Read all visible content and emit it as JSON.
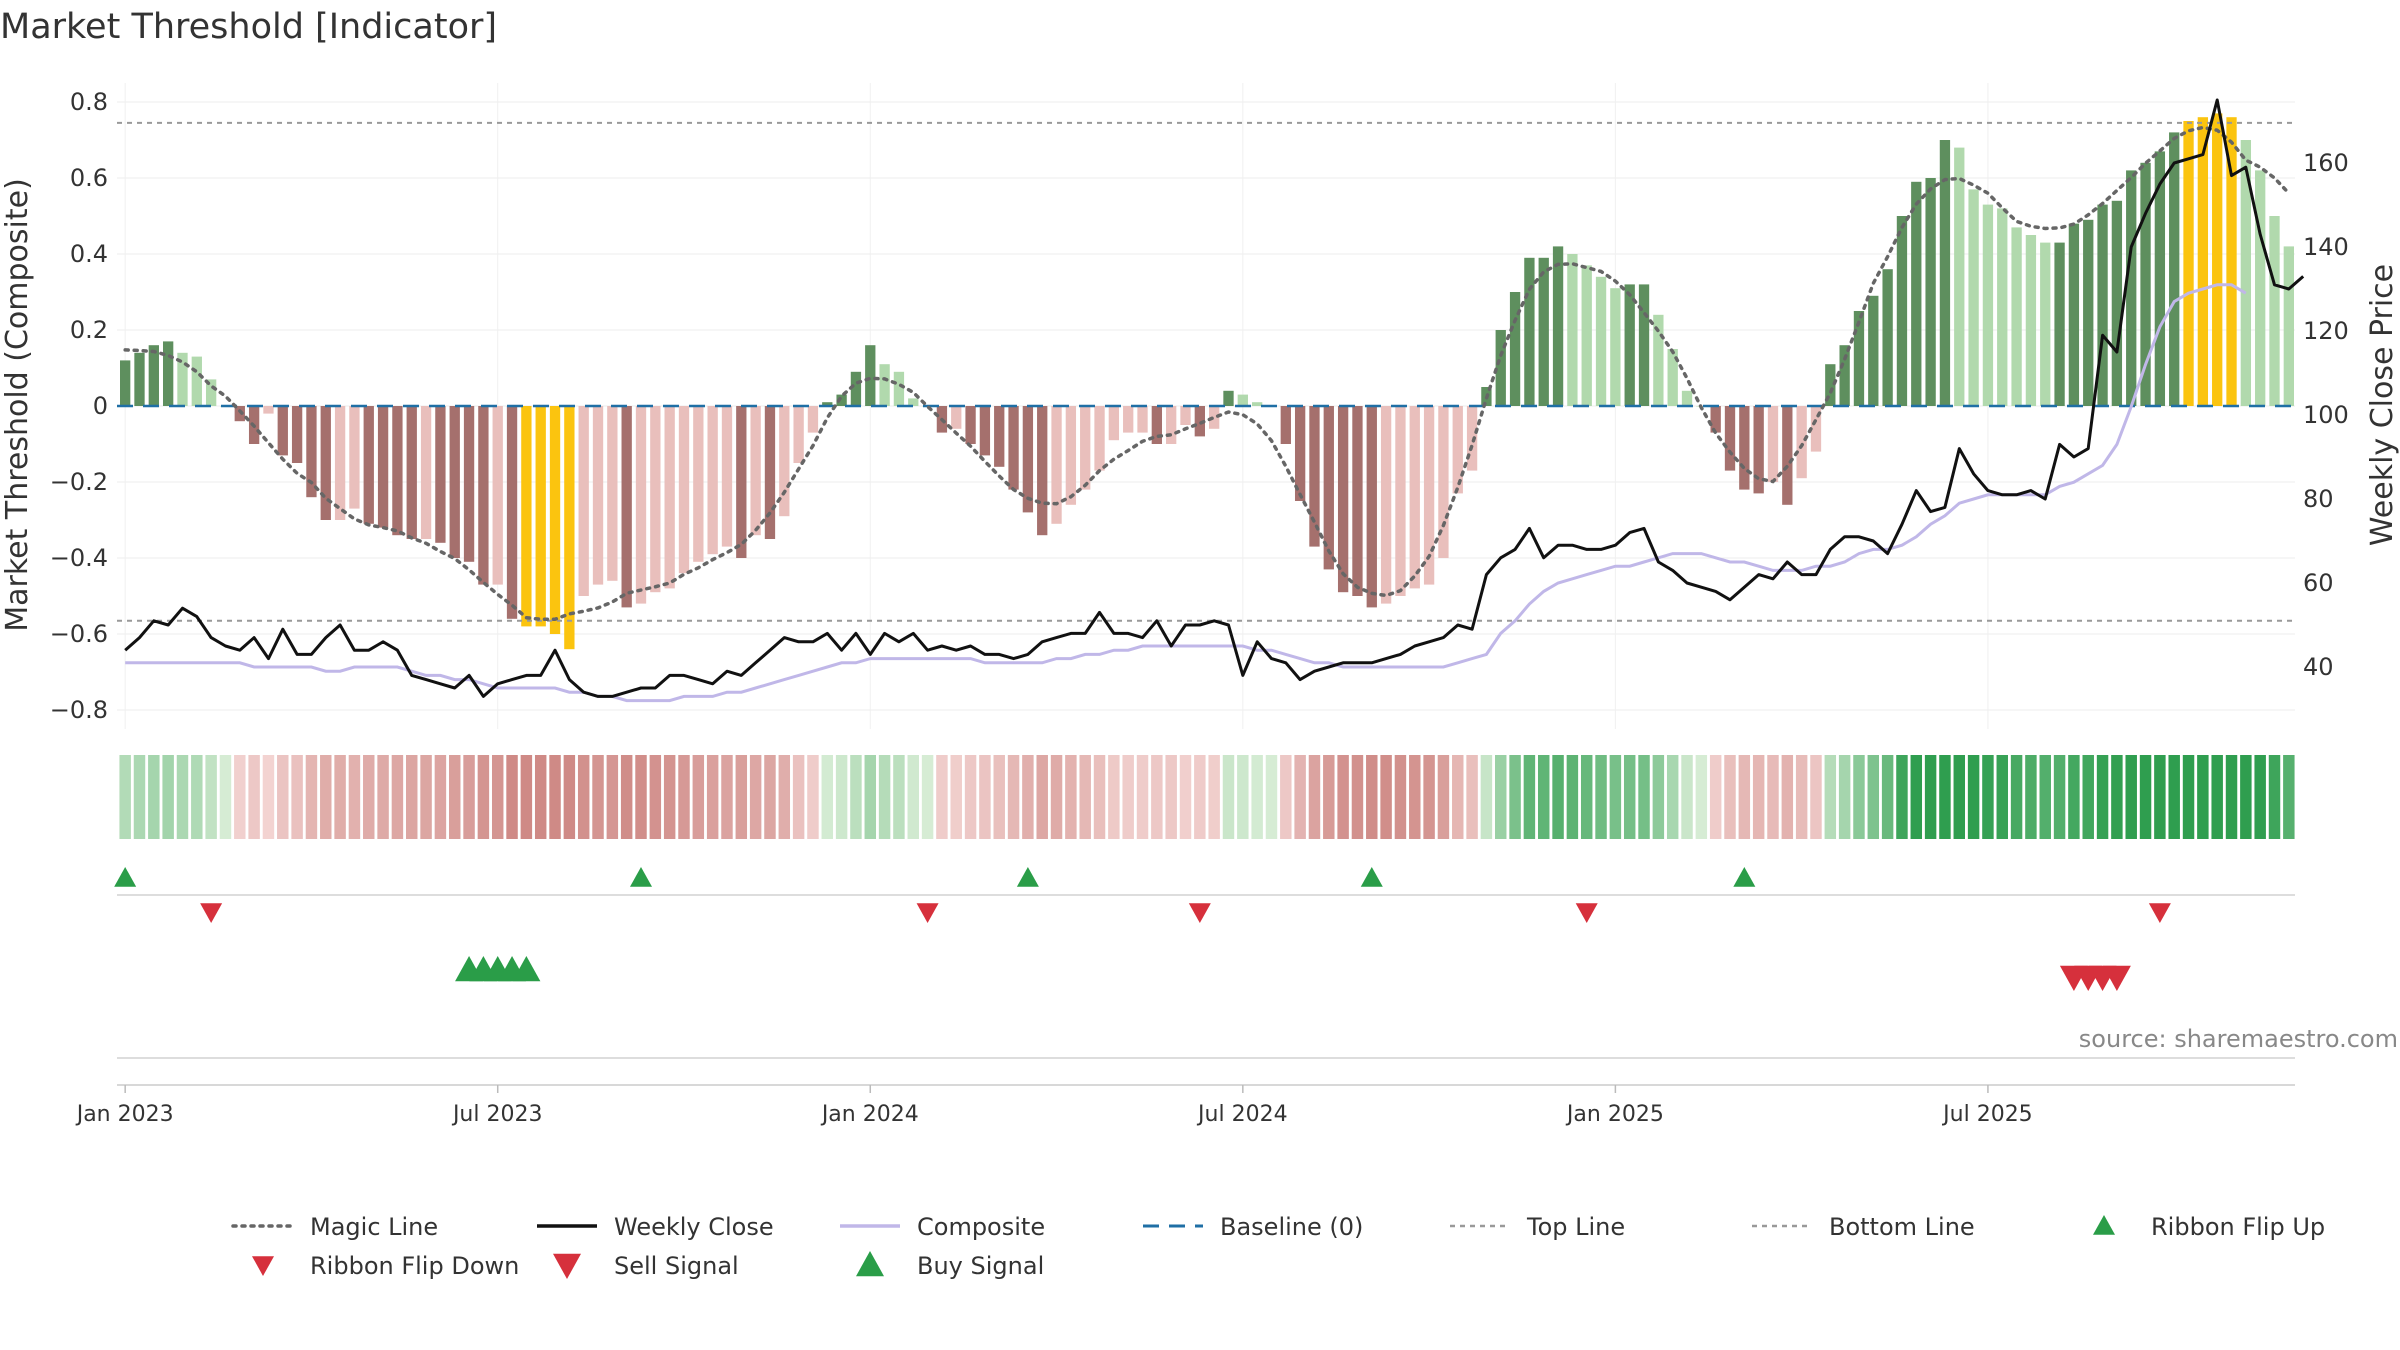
{
  "chart_data": {
    "type": "bar",
    "title": "Market Threshold [Indicator]",
    "ylabel_left": "Market Threshold (Composite)",
    "ylabel_right": "Weekly Close Price",
    "source": "source: sharemaestro.com",
    "ylim_left": [
      -0.85,
      0.85
    ],
    "ylim_right": [
      26,
      178
    ],
    "yticks_left": [
      {
        "v": 0.8,
        "label": "0.8"
      },
      {
        "v": 0.6,
        "label": "0.6"
      },
      {
        "v": 0.4,
        "label": "0.4"
      },
      {
        "v": 0.2,
        "label": "0.2"
      },
      {
        "v": 0,
        "label": "0"
      },
      {
        "v": -0.2,
        "label": "−0.2"
      },
      {
        "v": -0.4,
        "label": "−0.4"
      },
      {
        "v": -0.6,
        "label": "−0.6"
      },
      {
        "v": -0.8,
        "label": "−0.8"
      }
    ],
    "yticks_right": [
      {
        "v": 160,
        "label": "160"
      },
      {
        "v": 140,
        "label": "140"
      },
      {
        "v": 120,
        "label": "120"
      },
      {
        "v": 100,
        "label": "100"
      },
      {
        "v": 80,
        "label": "80"
      },
      {
        "v": 60,
        "label": "60"
      },
      {
        "v": 40,
        "label": "40"
      }
    ],
    "xticks": [
      {
        "week": 0,
        "label": "Jan 2023"
      },
      {
        "week": 26,
        "label": "Jul 2023"
      },
      {
        "week": 52,
        "label": "Jan 2024"
      },
      {
        "week": 78,
        "label": "Jul 2024"
      },
      {
        "week": 104,
        "label": "Jan 2025"
      },
      {
        "week": 130,
        "label": "Jul 2025"
      }
    ],
    "top_line": 0.745,
    "bottom_line": -0.565,
    "baseline": 0,
    "composite": [
      0.12,
      0.14,
      0.16,
      0.17,
      0.14,
      0.13,
      0.07,
      0,
      -0.04,
      -0.1,
      -0.02,
      -0.13,
      -0.15,
      -0.24,
      -0.3,
      -0.3,
      -0.27,
      -0.31,
      -0.32,
      -0.34,
      -0.35,
      -0.35,
      -0.36,
      -0.4,
      -0.41,
      -0.47,
      -0.47,
      -0.56,
      -0.58,
      -0.58,
      -0.6,
      -0.64,
      -0.5,
      -0.47,
      -0.46,
      -0.53,
      -0.52,
      -0.49,
      -0.48,
      -0.44,
      -0.41,
      -0.39,
      -0.37,
      -0.4,
      -0.34,
      -0.35,
      -0.29,
      -0.15,
      -0.07,
      0.01,
      0.03,
      0.09,
      0.16,
      0.11,
      0.09,
      0.02,
      0,
      -0.07,
      -0.06,
      -0.1,
      -0.13,
      -0.16,
      -0.22,
      -0.28,
      -0.34,
      -0.31,
      -0.26,
      -0.22,
      -0.17,
      -0.09,
      -0.07,
      -0.07,
      -0.1,
      -0.1,
      -0.05,
      -0.08,
      -0.06,
      0.04,
      0.03,
      0.01,
      0,
      -0.1,
      -0.25,
      -0.37,
      -0.43,
      -0.49,
      -0.5,
      -0.53,
      -0.52,
      -0.5,
      -0.48,
      -0.47,
      -0.4,
      -0.23,
      -0.17,
      0.05,
      0.2,
      0.3,
      0.39,
      0.39,
      0.42,
      0.4,
      0.37,
      0.34,
      0.31,
      0.32,
      0.32,
      0.24,
      0.15,
      0.04,
      0,
      -0.07,
      -0.17,
      -0.22,
      -0.23,
      -0.2,
      -0.26,
      -0.19,
      -0.12,
      0.11,
      0.16,
      0.25,
      0.29,
      0.36,
      0.5,
      0.59,
      0.6,
      0.7,
      0.68,
      0.57,
      0.53,
      0.52,
      0.47,
      0.45,
      0.43,
      0.43,
      0.48,
      0.49,
      0.53,
      0.54,
      0.62,
      0.64,
      0.67,
      0.72,
      0.75,
      0.76,
      0.77,
      0.76,
      0.7,
      0.62,
      0.5,
      0.42
    ],
    "weekly_close": [
      44,
      47,
      51,
      50,
      54,
      52,
      47,
      45,
      44,
      47,
      42,
      49,
      43,
      43,
      47,
      50,
      44,
      44,
      46,
      44,
      38,
      37,
      36,
      35,
      38,
      33,
      36,
      37,
      38,
      38,
      44,
      37,
      34,
      33,
      33,
      34,
      35,
      35,
      38,
      38,
      37,
      36,
      39,
      38,
      41,
      44,
      47,
      46,
      46,
      48,
      44,
      48,
      43,
      48,
      46,
      48,
      44,
      45,
      44,
      45,
      43,
      43,
      42,
      43,
      46,
      47,
      48,
      48,
      53,
      48,
      48,
      47,
      51,
      45,
      50,
      50,
      51,
      50,
      38,
      46,
      42,
      41,
      37,
      39,
      40,
      41,
      41,
      41,
      42,
      43,
      45,
      46,
      47,
      50,
      49,
      62,
      66,
      68,
      73,
      66,
      69,
      69,
      68,
      68,
      69,
      72,
      73,
      65,
      63,
      60,
      59,
      58,
      56,
      59,
      62,
      61,
      65,
      62,
      62,
      68,
      71,
      71,
      70,
      67,
      74,
      82,
      77,
      78,
      92,
      86,
      82,
      81,
      81,
      82,
      80,
      93,
      90,
      92,
      119,
      115,
      140,
      148,
      155,
      160,
      161,
      162,
      175,
      157,
      159,
      143,
      131,
      130,
      133
    ],
    "composite_line": [
      41,
      41,
      41,
      41,
      41,
      41,
      41,
      41,
      41,
      40,
      40,
      40,
      40,
      40,
      39,
      39,
      40,
      40,
      40,
      40,
      39,
      38,
      38,
      37,
      37,
      36,
      35,
      35,
      35,
      35,
      35,
      34,
      34,
      33,
      33,
      32,
      32,
      32,
      32,
      33,
      33,
      33,
      34,
      34,
      35,
      36,
      37,
      38,
      39,
      40,
      41,
      41,
      42,
      42,
      42,
      42,
      42,
      42,
      42,
      42,
      41,
      41,
      41,
      41,
      41,
      42,
      42,
      43,
      43,
      44,
      44,
      45,
      45,
      45,
      45,
      45,
      45,
      45,
      45,
      44,
      44,
      43,
      42,
      41,
      41,
      40,
      40,
      40,
      40,
      40,
      40,
      40,
      40,
      41,
      42,
      43,
      48,
      51,
      55,
      58,
      60,
      61,
      62,
      63,
      64,
      64,
      65,
      66,
      67,
      67,
      67,
      66,
      65,
      65,
      64,
      63,
      63,
      63,
      64,
      64,
      65,
      67,
      68,
      68,
      69,
      71,
      74,
      76,
      79,
      80,
      81,
      81,
      81,
      81,
      81,
      83,
      84,
      86,
      88,
      93,
      102,
      112,
      121,
      127,
      129,
      130,
      131,
      131,
      129
    ]
  },
  "top_line_label": "Top Line",
  "legend": {
    "items": [
      {
        "label": "Magic Line",
        "kind": "line-dotted-dark"
      },
      {
        "label": "Weekly Close",
        "kind": "line-solid-black"
      },
      {
        "label": "Composite",
        "kind": "line-solid-lavender"
      },
      {
        "label": "Baseline (0)",
        "kind": "line-dashed-blue"
      },
      {
        "label": "Top Line",
        "kind": "line-dotted-gray"
      },
      {
        "label": "Bottom Line",
        "kind": "line-dotted-gray"
      },
      {
        "label": "Ribbon Flip Up",
        "kind": "triangle-up-green"
      },
      {
        "label": "Ribbon Flip Down",
        "kind": "triangle-down-red"
      },
      {
        "label": "Sell Signal",
        "kind": "triangle-down-red-large"
      },
      {
        "label": "Buy Signal",
        "kind": "triangle-up-green-large"
      }
    ]
  },
  "signals": {
    "ribbon_flip_up_weeks": [
      0,
      36,
      63,
      87,
      113
    ],
    "ribbon_flip_down_weeks": [
      6,
      56,
      75,
      102,
      142
    ],
    "buy_signal_weeks": [
      24,
      25,
      26,
      27,
      28
    ],
    "sell_signal_weeks": [
      136,
      137,
      138,
      139
    ]
  },
  "colors": {
    "bar_dark_green": "#5e8f5e",
    "bar_light_green": "#b1d9ad",
    "bar_dark_red": "#a5706d",
    "bar_light_red": "#e9bfbc",
    "bar_yellow": "#fbc40f",
    "magic_line": "#666666",
    "weekly_close": "#111111",
    "composite_line": "#c0b7e8",
    "baseline": "#1f6fa5",
    "ref_line": "#999999",
    "signal_green": "#2a9d48",
    "signal_red": "#d6303c"
  }
}
